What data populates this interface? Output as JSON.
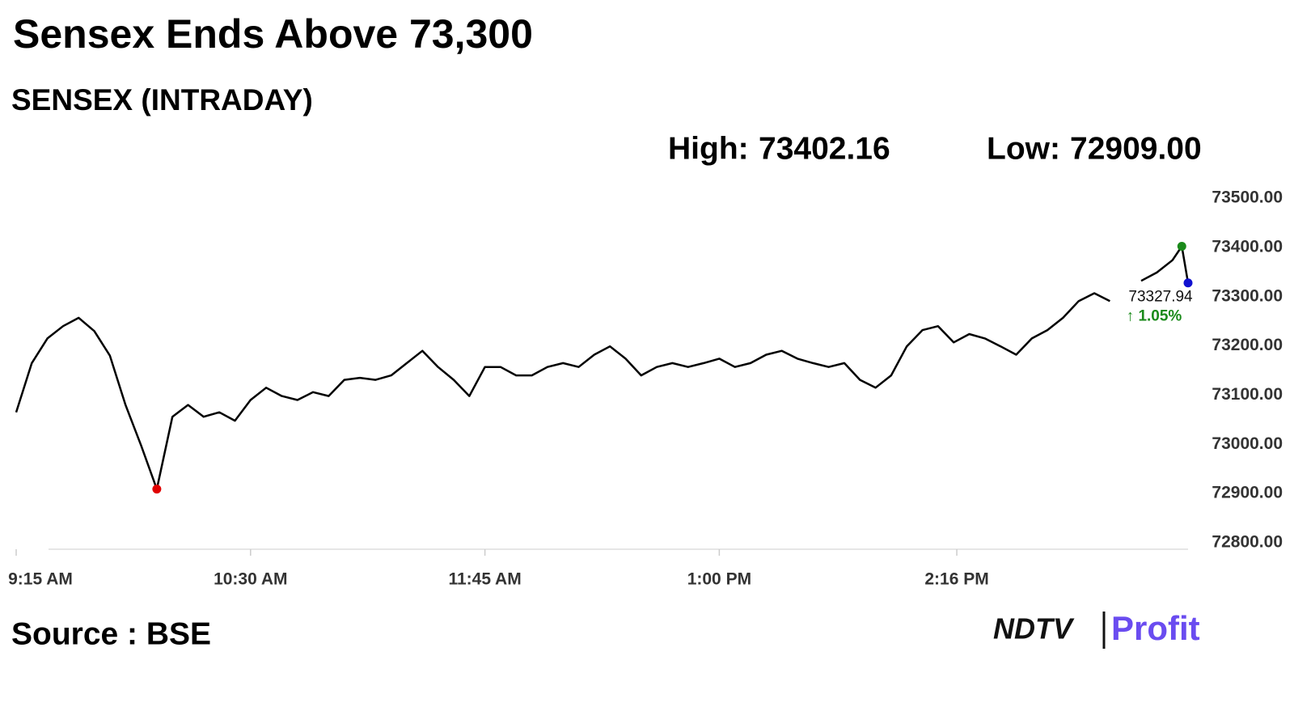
{
  "chart_data": {
    "type": "line",
    "title": "Sensex Ends Above 73,300",
    "subtitle": "SENSEX (INTRADAY)",
    "high_label": "High:",
    "high": 73402.16,
    "high_value_label": "73402.16",
    "low_label": "Low:",
    "low": 72909,
    "low_value_label": "72909.00",
    "last_value": 73327.94,
    "last_change": "↑ 1.05%",
    "source": "Source : BSE",
    "logo": [
      "NDTV",
      "Profit"
    ],
    "x": [
      555,
      560,
      565,
      570,
      575,
      580,
      585,
      590,
      595,
      600,
      605,
      610,
      615,
      620,
      625,
      630,
      635,
      640,
      645,
      650,
      655,
      660,
      665,
      670,
      675,
      680,
      685,
      690,
      695,
      700,
      705,
      710,
      715,
      720,
      725,
      730,
      735,
      740,
      745,
      750,
      755,
      760,
      765,
      770,
      775,
      780,
      785,
      790,
      795,
      800,
      805,
      810,
      815,
      820,
      825,
      830,
      835,
      840,
      845,
      850,
      855,
      860,
      865,
      870,
      875,
      880,
      885,
      890,
      895,
      900,
      905,
      910,
      915,
      920,
      925,
      928,
      930
    ],
    "series": [
      {
        "name": "SENSEX",
        "color": "#000000",
        "values": [
          73065,
          73165,
          73215,
          73240,
          73257,
          73230,
          73180,
          73080,
          72997,
          72909,
          73056,
          73080,
          73056,
          73065,
          73048,
          73090,
          73115,
          73098,
          73090,
          73106,
          73098,
          73131,
          73135,
          73131,
          73140,
          73165,
          73190,
          73157,
          73131,
          73098,
          73157,
          73157,
          73140,
          73140,
          73157,
          73165,
          73157,
          73182,
          73199,
          73174,
          73140,
          73157,
          73165,
          73157,
          73165,
          73174,
          73157,
          73165,
          73182,
          73190,
          73174,
          73165,
          73157,
          73165,
          73131,
          73115,
          73140,
          73199,
          73232,
          73240,
          73207,
          73224,
          73215,
          73199,
          73182,
          73215,
          73232,
          73257,
          73291,
          73307,
          73291,
          null,
          73332,
          73349,
          73374,
          73402.16,
          73327.94
        ]
      }
    ],
    "markers": [
      {
        "index": 9,
        "color": "#e00000"
      },
      {
        "index": 75,
        "color": "#1a8a1a"
      },
      {
        "index": 76,
        "color": "#1010d0"
      }
    ],
    "change_color": "#1a8a1a",
    "xlim": [
      555,
      930
    ],
    "xticks": [
      {
        "value": 555,
        "label": "9:15 AM"
      },
      {
        "value": 630,
        "label": "10:30 AM"
      },
      {
        "value": 705,
        "label": "11:45 AM"
      },
      {
        "value": 780,
        "label": "1:00 PM"
      },
      {
        "value": 856,
        "label": "2:16 PM"
      }
    ],
    "ylim": [
      72800,
      73500
    ],
    "yticks": [
      {
        "value": 72800,
        "label": "72800.00"
      },
      {
        "value": 72900,
        "label": "72900.00"
      },
      {
        "value": 73000,
        "label": "73000.00"
      },
      {
        "value": 73100,
        "label": "73100.00"
      },
      {
        "value": 73200,
        "label": "73200.00"
      },
      {
        "value": 73300,
        "label": "73300.00"
      },
      {
        "value": 73400,
        "label": "73400.00"
      },
      {
        "value": 73500,
        "label": "73500.00"
      }
    ],
    "grid": false
  }
}
